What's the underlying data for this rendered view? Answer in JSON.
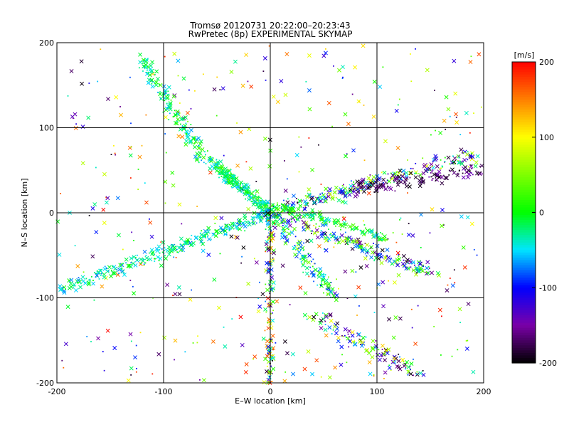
{
  "chart_data": {
    "type": "scatter",
    "title": "Tromsø 20120731 20:22:00–20:23:43",
    "subtitle": "RwPretec (8p) EXPERIMENTAL SKYMAP",
    "xlabel": "E–W location [km]",
    "ylabel": "N–S location [km]",
    "xlim": [
      -200,
      200
    ],
    "ylim": [
      -200,
      200
    ],
    "xticks": [
      "-200",
      "-100",
      "0",
      "100",
      "200"
    ],
    "yticks": [
      "-200",
      "-100",
      "0",
      "100",
      "200"
    ],
    "grid": true,
    "colorbar": {
      "label": "[m/s]",
      "range": [
        -200,
        200
      ],
      "ticks": [
        "-200",
        "-100",
        "0",
        "100",
        "200"
      ]
    },
    "markers": [
      "x",
      "dot"
    ],
    "colors": {
      "black": "#000000",
      "purple": "#7a00a8",
      "blue": "#0000ff",
      "cyan": "#00e5ff",
      "green": "#00ff00",
      "yellow": "#ffff00",
      "red": "#ff0000"
    },
    "clusters": [
      {
        "name_ref": "arm-nw",
        "x": [
          -50,
          0
        ],
        "y": [
          0,
          60
        ],
        "velocity": [
          -20,
          60
        ]
      },
      {
        "name_ref": "arm-ne",
        "x": [
          0,
          200
        ],
        "y": [
          0,
          80
        ],
        "velocity": [
          -200,
          80
        ]
      },
      {
        "name_ref": "arm-sw",
        "x": [
          -200,
          0
        ],
        "y": [
          -100,
          0
        ],
        "velocity": [
          -80,
          0
        ]
      },
      {
        "name_ref": "arm-se",
        "x": [
          0,
          160
        ],
        "y": [
          -110,
          0
        ],
        "velocity": [
          -200,
          60
        ]
      },
      {
        "name_ref": "arm-s",
        "x": [
          -10,
          10
        ],
        "y": [
          -200,
          0
        ],
        "velocity": [
          -200,
          200
        ]
      },
      {
        "name_ref": "arm-n",
        "x": [
          -130,
          -80
        ],
        "y": [
          100,
          200
        ],
        "velocity": [
          -60,
          40
        ]
      }
    ]
  }
}
